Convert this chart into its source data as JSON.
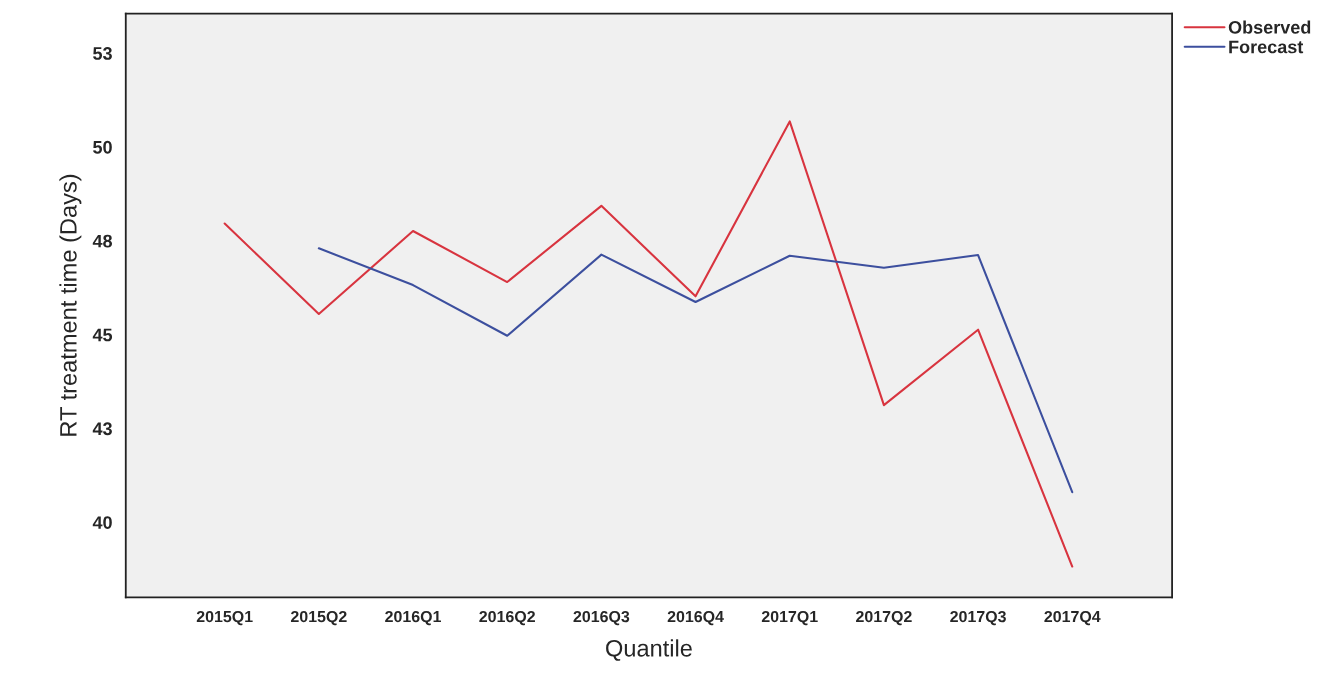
{
  "chart_data": {
    "type": "line",
    "xlabel": "Quantile",
    "ylabel": "RT treatment time (Days)",
    "categories": [
      "2015Q1",
      "2015Q2",
      "2016Q1",
      "2016Q2",
      "2016Q3",
      "2016Q4",
      "2017Q1",
      "2017Q2",
      "2017Q3",
      "2017Q4"
    ],
    "series": [
      {
        "name": "Observed",
        "color": "#d8343f",
        "values": [
          47.96,
          45.55,
          47.76,
          46.4,
          48.43,
          46.02,
          50.68,
          43.12,
          45.13,
          38.82
        ]
      },
      {
        "name": "Forecast",
        "color": "#3c4f9e",
        "values": [
          null,
          47.3,
          46.32,
          44.97,
          47.13,
          45.87,
          47.1,
          46.78,
          47.12,
          40.8
        ]
      }
    ],
    "ylim": [
      38.0,
      53.55
    ],
    "yticks": [
      40,
      {
        "value": 42.5,
        "label": "43"
      },
      45,
      {
        "value": 47.5,
        "label": "48"
      },
      50,
      {
        "value": 52.5,
        "label": "53"
      }
    ],
    "grid": false,
    "legend": "top right",
    "marker": "none",
    "line_style": "solid"
  }
}
